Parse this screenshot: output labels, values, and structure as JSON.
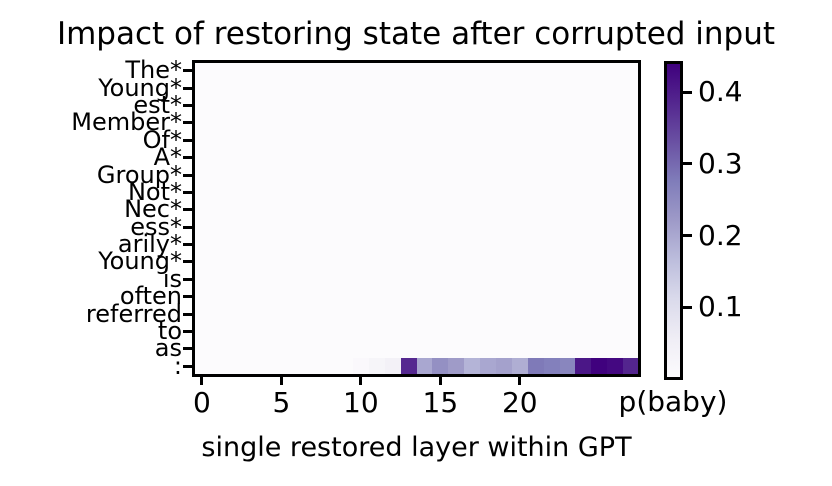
{
  "title": "Impact of restoring state after corrupted input",
  "chart_data": {
    "type": "heatmap",
    "title": "Impact of restoring state after corrupted input",
    "xlabel": "single restored layer within GPT",
    "x_ticks": [
      0,
      5,
      10,
      15,
      20
    ],
    "n_layers": 28,
    "y_categories": [
      "The*",
      "Young*",
      "est*",
      "Member*",
      "Of*",
      "A*",
      "Group*",
      "Not*",
      "Nec*",
      "ess*",
      "arily*",
      "Young*",
      "is",
      "often",
      "referred",
      "to",
      "as",
      ":"
    ],
    "colormap": "Purples",
    "vmax": 0.442,
    "colorbar_label": "p(baby)",
    "colorbar_ticks": [
      0.1,
      0.2,
      0.3,
      0.4
    ],
    "values_note": "all token rows are 0 (white) except the final token row ':'",
    "bottom_row_token": ":",
    "bottom_row_values": [
      0,
      0,
      0,
      0,
      0,
      0,
      0,
      0,
      0,
      0,
      0.01,
      0.025,
      0.04,
      0.385,
      0.2,
      0.24,
      0.22,
      0.18,
      0.2,
      0.21,
      0.19,
      0.28,
      0.27,
      0.26,
      0.41,
      0.44,
      0.43,
      0.39
    ]
  },
  "colors": {
    "background": "#ffffff",
    "axis": "#000000",
    "text": "#000000",
    "cell_background": "#fcfbfd",
    "purples_stops": [
      "#fcfbfd",
      "#efedf5",
      "#dadaeb",
      "#bcbddc",
      "#9e9ac8",
      "#807dba",
      "#6a51a3",
      "#54278f",
      "#3f007d"
    ]
  }
}
